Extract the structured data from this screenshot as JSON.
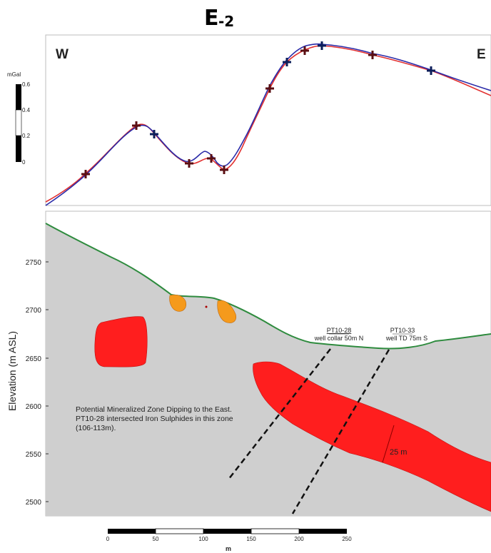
{
  "title": {
    "main": "E",
    "sub": "-2"
  },
  "profile": {
    "west_label": "W",
    "east_label": "E",
    "scale_unit": "mGal",
    "scale_ticks": [
      "0.6",
      "0.4",
      "0.2",
      "0"
    ]
  },
  "section": {
    "ylabel": "Elevation (m ASL)",
    "yticks": [
      "2750",
      "2700",
      "2650",
      "2600",
      "2550",
      "2500"
    ],
    "annotation_lines": [
      "Potential Mineralized Zone Dipping to the East.",
      "PT10-28 intersected Iron Sulphides in this zone",
      "(106-113m)."
    ],
    "wells": [
      {
        "name": "PT10-28",
        "note": "well collar 50m N"
      },
      {
        "name": "PT10-33",
        "note": "well TD 75m S"
      }
    ],
    "thickness_label": "25 m"
  },
  "scalebar": {
    "ticks": [
      "0",
      "50",
      "100",
      "150",
      "200",
      "250"
    ],
    "unit": "m"
  },
  "colors": {
    "observed": "#e23030",
    "calculated": "#2a2aa8",
    "topography": "#2e8b3e",
    "body_red": "#ff1e1e",
    "body_orange": "#f59a1c",
    "section_fill": "#cfcfcf"
  }
}
